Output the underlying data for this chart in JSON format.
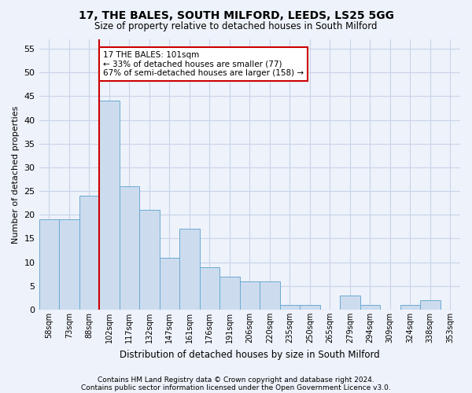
{
  "title1": "17, THE BALES, SOUTH MILFORD, LEEDS, LS25 5GG",
  "title2": "Size of property relative to detached houses in South Milford",
  "xlabel": "Distribution of detached houses by size in South Milford",
  "ylabel": "Number of detached properties",
  "categories": [
    "58sqm",
    "73sqm",
    "88sqm",
    "102sqm",
    "117sqm",
    "132sqm",
    "147sqm",
    "161sqm",
    "176sqm",
    "191sqm",
    "206sqm",
    "220sqm",
    "235sqm",
    "250sqm",
    "265sqm",
    "279sqm",
    "294sqm",
    "309sqm",
    "324sqm",
    "338sqm",
    "353sqm"
  ],
  "values": [
    19,
    19,
    24,
    44,
    26,
    21,
    11,
    17,
    9,
    7,
    6,
    6,
    1,
    1,
    0,
    3,
    1,
    0,
    1,
    2,
    0
  ],
  "bar_color": "#ccdcee",
  "bar_edge_color": "#6aaad4",
  "vline_x_index": 3,
  "vline_color": "#cc0000",
  "annotation_text": "17 THE BALES: 101sqm\n← 33% of detached houses are smaller (77)\n67% of semi-detached houses are larger (158) →",
  "annotation_box_color": "white",
  "annotation_box_edge_color": "#cc0000",
  "ylim": [
    0,
    57
  ],
  "yticks": [
    0,
    5,
    10,
    15,
    20,
    25,
    30,
    35,
    40,
    45,
    50,
    55
  ],
  "grid_color": "#c8d4e8",
  "footer1": "Contains HM Land Registry data © Crown copyright and database right 2024.",
  "footer2": "Contains public sector information licensed under the Open Government Licence v3.0.",
  "bg_color": "#eef2fa"
}
